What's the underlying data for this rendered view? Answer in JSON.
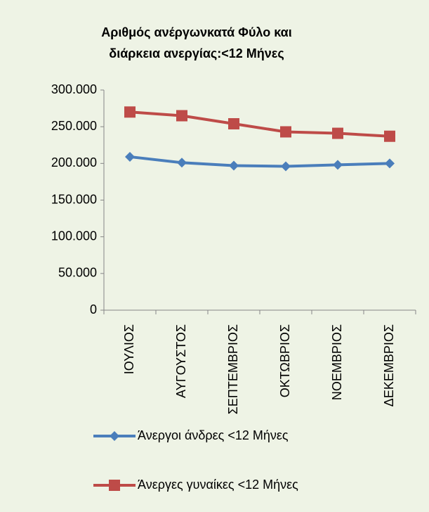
{
  "chart_data": {
    "type": "line",
    "title": [
      "Αριθμός ανέργωνκατά Φύλο και",
      "διάρκεια ανεργίας:<12 Μήνες"
    ],
    "categories": [
      "ΙΟΥΛΙΟΣ",
      "ΑΥΓΟΥΣΤΟΣ",
      "ΣΕΠΤΕΜΒΡΙΟΣ",
      "ΟΚΤΩΒΡΙΟΣ",
      "ΝΟΕΜΒΡΙΟΣ",
      "ΔΕΚΕΜΒΡΙΟΣ"
    ],
    "series": [
      {
        "name": "Άνεργοι άνδρες <12 Μήνες",
        "color": "#4a7ebb",
        "marker": "diamond",
        "values": [
          209000,
          201000,
          197000,
          196000,
          198000,
          200000
        ]
      },
      {
        "name": "Άνεργες γυναίκες <12 Μήνες",
        "color": "#be4b48",
        "marker": "square",
        "values": [
          270000,
          265000,
          254000,
          243000,
          241000,
          237000
        ]
      }
    ],
    "ylim": [
      0,
      300000
    ],
    "yticks": [
      0,
      {
        "value": 50000,
        "label": "50.000"
      },
      {
        "value": 100000,
        "label": "100.000"
      },
      {
        "value": 150000,
        "label": "150.000"
      },
      {
        "value": 200000,
        "label": "200.000"
      },
      {
        "value": 250000,
        "label": "250.000"
      },
      {
        "value": 300000,
        "label": "300.000"
      }
    ],
    "grid": false,
    "legend": "bottom"
  }
}
